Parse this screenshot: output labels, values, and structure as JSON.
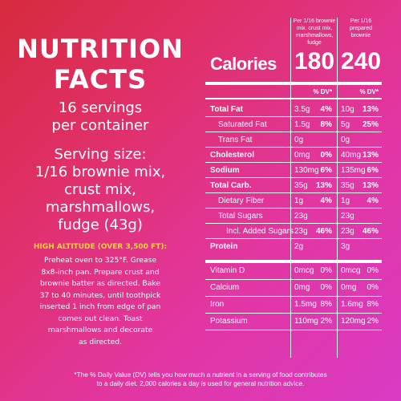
{
  "left": {
    "title_line1": "NUTRITION",
    "title_line2": "FACTS",
    "servings_line1": "16 servings",
    "servings_line2": "per container",
    "serving_size_lines": [
      "Serving size:",
      "1/16 brownie mix,",
      "crust mix,",
      "marshmallows,",
      "fudge (43g)"
    ],
    "high_altitude_heading": "HIGH ALTITUDE (OVER 3,500 FT):",
    "high_altitude_lines": [
      "Preheat oven to 325°F. Grease",
      "8x8-inch pan. Prepare crust and",
      "brownie batter as directed. Bake",
      "37 to 40 minutes, until toothpick",
      "inserted 1 inch from edge of pan",
      "comes out clean. Toast",
      "marshmallows and decorate",
      "as directed."
    ]
  },
  "panel": {
    "col1_header": [
      "Per 1/16 brownie",
      "mix, crust mix,",
      "marshmallows, fudge"
    ],
    "col2_header": [
      "Per 1/16 prepared",
      "brownie"
    ],
    "calories_label": "Calories",
    "calories_col1": "180",
    "calories_col2": "240",
    "dv_label": "% DV*",
    "rows": [
      {
        "name": "Total Fat",
        "bold": true,
        "indent": 0,
        "a1": "3.5g",
        "p1": "4%",
        "a2": "10g",
        "p2": "13%"
      },
      {
        "name": "Saturated Fat",
        "bold": false,
        "indent": 1,
        "a1": "1.5g",
        "p1": "8%",
        "a2": "5g",
        "p2": "25%"
      },
      {
        "name": "Trans Fat",
        "bold": false,
        "indent": 1,
        "a1": "0g",
        "p1": "",
        "a2": "0g",
        "p2": ""
      },
      {
        "name": "Cholesterol",
        "bold": true,
        "indent": 0,
        "a1": "0mg",
        "p1": "0%",
        "a2": "40mg",
        "p2": "13%"
      },
      {
        "name": "Sodium",
        "bold": true,
        "indent": 0,
        "a1": "130mg",
        "p1": "6%",
        "a2": "135mg",
        "p2": "6%"
      },
      {
        "name": "Total Carb.",
        "bold": true,
        "indent": 0,
        "a1": "35g",
        "p1": "13%",
        "a2": "35g",
        "p2": "13%"
      },
      {
        "name": "Dietary Fiber",
        "bold": false,
        "indent": 1,
        "a1": "1g",
        "p1": "4%",
        "a2": "1g",
        "p2": "4%"
      },
      {
        "name": "Total Sugars",
        "bold": false,
        "indent": 1,
        "a1": "23g",
        "p1": "",
        "a2": "23g",
        "p2": ""
      },
      {
        "name": "Incl. Added Sugars",
        "bold": false,
        "indent": 2,
        "a1": "23g",
        "p1": "46%",
        "a2": "23g",
        "p2": "46%"
      },
      {
        "name": "Protein",
        "bold": true,
        "indent": 0,
        "a1": "2g",
        "p1": "",
        "a2": "3g",
        "p2": "",
        "thick": true
      },
      {
        "name": "Vitamin D",
        "bold": false,
        "indent": 0,
        "a1": "0mcg",
        "p1": "0%",
        "a2": "0mcg",
        "p2": "0%",
        "light": true
      },
      {
        "name": "Calcium",
        "bold": false,
        "indent": 0,
        "a1": "0mg",
        "p1": "0%",
        "a2": "0mg",
        "p2": "0%",
        "light": true
      },
      {
        "name": "Iron",
        "bold": false,
        "indent": 0,
        "a1": "1.5mg",
        "p1": "8%",
        "a2": "1.6mg",
        "p2": "8%",
        "light": true
      },
      {
        "name": "Potassium",
        "bold": false,
        "indent": 0,
        "a1": "110mg",
        "p1": "2%",
        "a2": "120mg",
        "p2": "2%",
        "light": true
      }
    ]
  },
  "footer": {
    "line1": "*The % Daily Value (DV) tells you how much a nutrient in a serving of food contributes",
    "line2": "to a daily diet. 2,000 calories a day is used for general nutrition advice."
  },
  "colors": {
    "background_start": "#d62a3c",
    "background_end": "#d93bc4",
    "accent_yellow": "#ffd23a",
    "text": "#ffffff"
  }
}
